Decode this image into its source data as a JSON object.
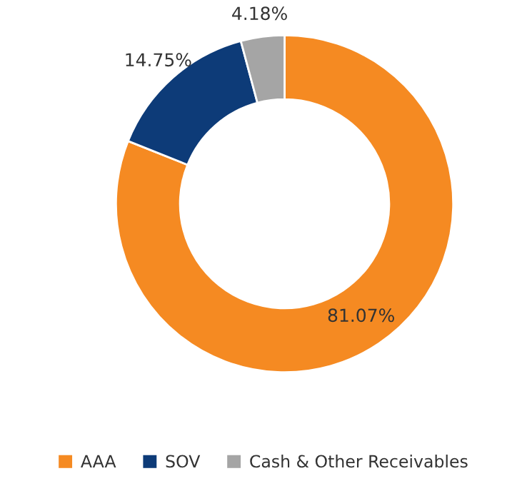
{
  "chart_data": {
    "type": "donut",
    "categories": [
      "AAA",
      "SOV",
      "Cash & Other Receivables"
    ],
    "values": [
      81.07,
      14.75,
      4.18
    ],
    "colors": [
      "#f58a22",
      "#0d3b78",
      "#a5a5a5"
    ],
    "value_labels": [
      "81.07%",
      "14.75%",
      "4.18%"
    ],
    "legend": "bottom"
  }
}
